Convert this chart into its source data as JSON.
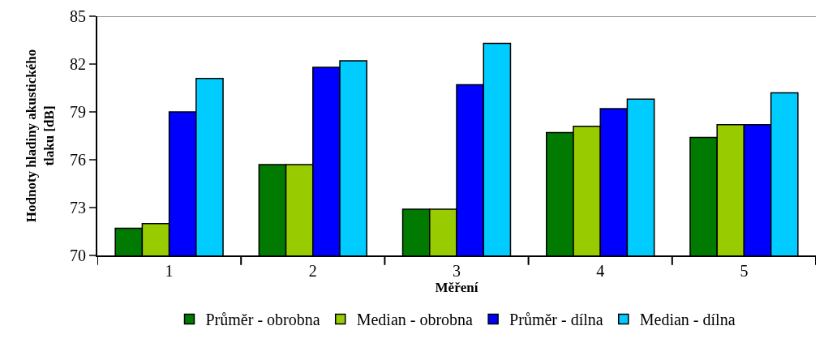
{
  "chart_data": {
    "type": "bar",
    "xlabel": "Měření",
    "ylabel": "Hodnoty hladiny akustického tlaku [dB]",
    "categories": [
      "1",
      "2",
      "3",
      "4",
      "5"
    ],
    "series": [
      {
        "name": "Průměr - obrobna",
        "color": "#007a00",
        "values": [
          71.7,
          75.7,
          72.9,
          77.7,
          77.4
        ]
      },
      {
        "name": "Median - obrobna",
        "color": "#99cc00",
        "values": [
          72.0,
          75.7,
          72.9,
          78.1,
          78.2
        ]
      },
      {
        "name": "Průměr - dílna",
        "color": "#0000ff",
        "values": [
          79.0,
          81.8,
          80.7,
          79.2,
          78.2
        ]
      },
      {
        "name": "Median - dílna",
        "color": "#00ccff",
        "values": [
          81.1,
          82.2,
          83.3,
          79.8,
          80.2
        ]
      }
    ],
    "ylim": [
      70,
      85
    ],
    "yticks": [
      70,
      73,
      76,
      79,
      82,
      85
    ],
    "legend": "bottom"
  }
}
